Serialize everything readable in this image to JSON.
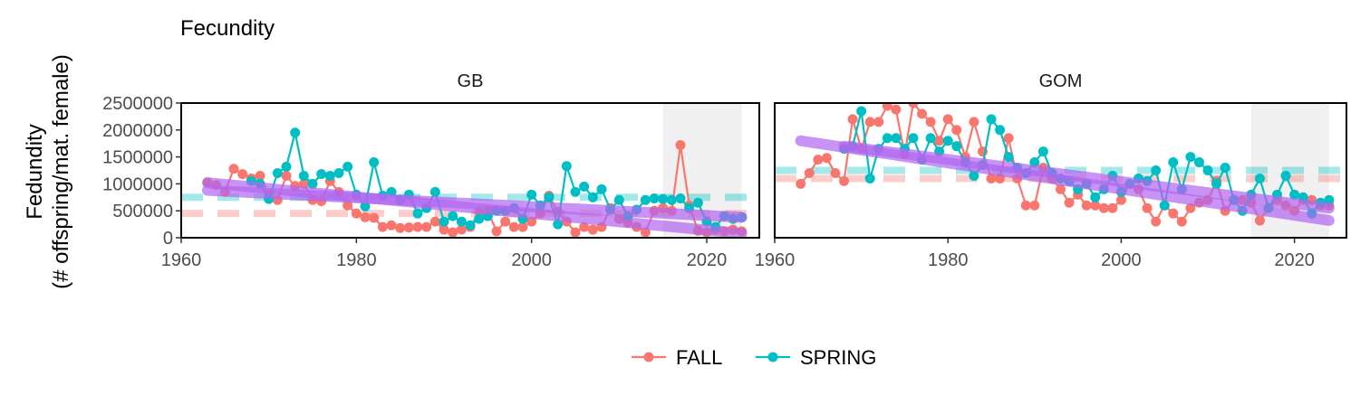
{
  "chart_data": {
    "type": "line",
    "title": "Fecundity",
    "ylabel_line1": "Fedundity",
    "ylabel_line2": "(# offspring/mat. female)",
    "xlabel": "",
    "xlim": [
      1960,
      2026
    ],
    "ylim": [
      0,
      2500000
    ],
    "x_ticks": [
      1960,
      1980,
      2000,
      2020
    ],
    "y_ticks": [
      0,
      500000,
      1000000,
      1500000,
      2000000,
      2500000
    ],
    "y_tick_labels": [
      "0",
      "500000",
      "1000000",
      "1500000",
      "2000000",
      "2500000"
    ],
    "grid": false,
    "legend": {
      "position": "bottom",
      "items": [
        {
          "name": "FALL",
          "color": "#F8766D"
        },
        {
          "name": "SPRING",
          "color": "#00BFC4"
        }
      ]
    },
    "trend_color": "#B266F0",
    "shade_range": [
      2015,
      2024
    ],
    "shade_color": "#EBEBEB",
    "panels": [
      {
        "name": "GB",
        "ref_lines": {
          "FALL": 450000,
          "SPRING": 750000
        },
        "series": [
          {
            "name": "FALL",
            "color": "#F8766D",
            "x": [
              1963,
              1964,
              1965,
              1966,
              1967,
              1968,
              1969,
              1970,
              1971,
              1972,
              1973,
              1974,
              1975,
              1976,
              1977,
              1978,
              1979,
              1980,
              1981,
              1982,
              1983,
              1984,
              1985,
              1986,
              1987,
              1988,
              1989,
              1990,
              1991,
              1992,
              1993,
              1994,
              1995,
              1996,
              1997,
              1998,
              1999,
              2000,
              2001,
              2002,
              2003,
              2004,
              2005,
              2006,
              2007,
              2008,
              2009,
              2010,
              2011,
              2012,
              2013,
              2014,
              2015,
              2016,
              2017,
              2018,
              2019,
              2020,
              2021,
              2022,
              2023,
              2024
            ],
            "y": [
              1030000,
              980000,
              850000,
              1280000,
              1180000,
              1100000,
              1150000,
              800000,
              700000,
              1150000,
              960000,
              1000000,
              700000,
              680000,
              1050000,
              850000,
              600000,
              450000,
              380000,
              370000,
              200000,
              230000,
              180000,
              190000,
              200000,
              200000,
              300000,
              150000,
              100000,
              150000,
              200000,
              480000,
              500000,
              120000,
              300000,
              200000,
              200000,
              300000,
              450000,
              780000,
              480000,
              300000,
              100000,
              200000,
              150000,
              200000,
              550000,
              350000,
              280000,
              200000,
              100000,
              500000,
              550000,
              500000,
              1720000,
              600000,
              130000,
              100000,
              150000,
              120000,
              150000,
              120000
            ]
          },
          {
            "name": "SPRING",
            "color": "#00BFC4",
            "x": [
              1968,
              1969,
              1970,
              1971,
              1972,
              1973,
              1974,
              1975,
              1976,
              1977,
              1978,
              1979,
              1980,
              1981,
              1982,
              1983,
              1984,
              1985,
              1986,
              1987,
              1988,
              1989,
              1990,
              1991,
              1992,
              1993,
              1994,
              1995,
              1996,
              1997,
              1998,
              1999,
              2000,
              2001,
              2002,
              2003,
              2004,
              2005,
              2006,
              2007,
              2008,
              2009,
              2010,
              2011,
              2012,
              2013,
              2014,
              2015,
              2016,
              2017,
              2018,
              2019,
              2020,
              2021,
              2022,
              2023,
              2024
            ],
            "y": [
              1050000,
              1000000,
              720000,
              1200000,
              1320000,
              1950000,
              1150000,
              1000000,
              1180000,
              1150000,
              1200000,
              1320000,
              800000,
              580000,
              1400000,
              780000,
              850000,
              700000,
              800000,
              450000,
              550000,
              850000,
              300000,
              400000,
              300000,
              230000,
              350000,
              400000,
              500000,
              500000,
              550000,
              350000,
              800000,
              600000,
              750000,
              250000,
              1330000,
              850000,
              950000,
              750000,
              900000,
              520000,
              700000,
              400000,
              520000,
              700000,
              730000,
              720000,
              700000,
              730000,
              550000,
              650000,
              300000,
              200000,
              400000,
              350000,
              380000
            ]
          }
        ],
        "trends": [
          {
            "name": "FALL",
            "x": [
              1963,
              2024
            ],
            "y": [
              1020000,
              80000
            ]
          },
          {
            "name": "SPRING",
            "x": [
              1963,
              2024
            ],
            "y": [
              880000,
              380000
            ]
          }
        ]
      },
      {
        "name": "GOM",
        "ref_lines": {
          "FALL": 1100000,
          "SPRING": 1250000
        },
        "series": [
          {
            "name": "FALL",
            "color": "#F8766D",
            "x": [
              1963,
              1964,
              1965,
              1966,
              1967,
              1968,
              1969,
              1970,
              1971,
              1972,
              1973,
              1974,
              1975,
              1976,
              1977,
              1978,
              1979,
              1980,
              1981,
              1982,
              1983,
              1984,
              1985,
              1986,
              1987,
              1988,
              1989,
              1990,
              1991,
              1992,
              1993,
              1994,
              1995,
              1996,
              1997,
              1998,
              1999,
              2000,
              2001,
              2002,
              2003,
              2004,
              2005,
              2006,
              2007,
              2008,
              2009,
              2010,
              2011,
              2012,
              2013,
              2014,
              2015,
              2016,
              2017,
              2018,
              2019,
              2020,
              2021,
              2022,
              2023,
              2024
            ],
            "y": [
              1000000,
              1200000,
              1450000,
              1480000,
              1200000,
              1050000,
              2200000,
              1650000,
              2150000,
              2150000,
              2450000,
              2380000,
              1550000,
              2500000,
              2300000,
              2150000,
              1800000,
              2200000,
              2000000,
              1500000,
              2150000,
              1600000,
              1100000,
              1100000,
              1850000,
              1100000,
              600000,
              600000,
              1300000,
              1100000,
              900000,
              650000,
              800000,
              600000,
              600000,
              550000,
              550000,
              700000,
              1000000,
              900000,
              550000,
              300000,
              600000,
              450000,
              300000,
              550000,
              650000,
              700000,
              1050000,
              500000,
              700000,
              700000,
              650000,
              320000,
              550000,
              700000,
              600000,
              500000,
              700000,
              700000,
              600000,
              600000
            ]
          },
          {
            "name": "SPRING",
            "color": "#00BFC4",
            "x": [
              1968,
              1969,
              1970,
              1971,
              1972,
              1973,
              1974,
              1975,
              1976,
              1977,
              1978,
              1979,
              1980,
              1981,
              1982,
              1983,
              1984,
              1985,
              1986,
              1987,
              1988,
              1989,
              1990,
              1991,
              1992,
              1993,
              1994,
              1995,
              1996,
              1997,
              1998,
              1999,
              2000,
              2001,
              2002,
              2003,
              2004,
              2005,
              2006,
              2007,
              2008,
              2009,
              2010,
              2011,
              2012,
              2013,
              2014,
              2015,
              2016,
              2017,
              2018,
              2019,
              2020,
              2021,
              2022,
              2023,
              2024
            ],
            "y": [
              1650000,
              1700000,
              2350000,
              1100000,
              1650000,
              1850000,
              1850000,
              1650000,
              1850000,
              1450000,
              1850000,
              1600000,
              1800000,
              1700000,
              1400000,
              1150000,
              1350000,
              2200000,
              2000000,
              1500000,
              1300000,
              1200000,
              1400000,
              1600000,
              1200000,
              1100000,
              1050000,
              900000,
              1000000,
              750000,
              900000,
              1150000,
              850000,
              1000000,
              1100000,
              1050000,
              1250000,
              600000,
              1400000,
              900000,
              1500000,
              1400000,
              1250000,
              1000000,
              1300000,
              700000,
              500000,
              800000,
              1100000,
              550000,
              800000,
              1150000,
              800000,
              750000,
              450000,
              650000,
              700000
            ]
          }
        ],
        "trends": [
          {
            "name": "FALL",
            "x": [
              1963,
              2024
            ],
            "y": [
              1800000,
              320000
            ]
          },
          {
            "name": "SPRING",
            "x": [
              1968,
              2024
            ],
            "y": [
              1700000,
              550000
            ]
          }
        ]
      }
    ]
  }
}
